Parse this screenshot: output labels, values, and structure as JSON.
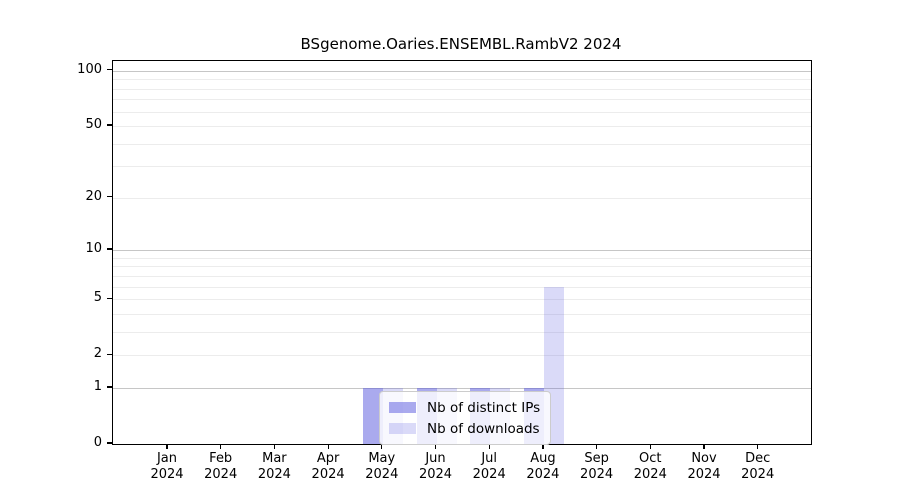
{
  "title": "BSgenome.Oaries.ENSEMBL.RambV2 2024",
  "colors": {
    "distinct_ips_bar": "rgba(85,85,221,0.5)",
    "downloads_bar": "rgba(85,85,221,0.22)",
    "distinct_ips_over_white": "#aaaaee",
    "downloads_over_white": "#d9d9f7",
    "grid_major": "#c6c6c6",
    "grid_minor": "#ececec",
    "axis": "#000000"
  },
  "legend": {
    "items": [
      {
        "label": "Nb of distinct IPs",
        "color_key": "distinct_ips_bar"
      },
      {
        "label": "Nb of downloads",
        "color_key": "downloads_bar"
      }
    ]
  },
  "chart_data": {
    "type": "bar",
    "title": "BSgenome.Oaries.ENSEMBL.RambV2 2024",
    "categories": [
      "Jan 2024",
      "Feb 2024",
      "Mar 2024",
      "Apr 2024",
      "May 2024",
      "Jun 2024",
      "Jul 2024",
      "Aug 2024",
      "Sep 2024",
      "Oct 2024",
      "Nov 2024",
      "Dec 2024"
    ],
    "series": [
      {
        "name": "Nb of distinct IPs",
        "values": [
          0,
          0,
          0,
          0,
          1,
          1,
          1,
          1,
          0,
          0,
          0,
          0
        ]
      },
      {
        "name": "Nb of downloads",
        "values": [
          0,
          0,
          0,
          0,
          1,
          1,
          1,
          6,
          0,
          0,
          0,
          0
        ]
      }
    ],
    "xlabel": "",
    "ylabel": "",
    "yscale": "log1p",
    "ylim": [
      0,
      113
    ],
    "y_ticks": [
      0,
      1,
      2,
      5,
      10,
      20,
      50,
      100
    ],
    "gridlines_major": [
      1,
      10,
      100
    ],
    "gridlines_minor": [
      2,
      3,
      4,
      5,
      6,
      7,
      8,
      9,
      20,
      30,
      40,
      50,
      60,
      70,
      80,
      90
    ],
    "grid": "horizontal",
    "legend_position": "lower-center-inside"
  }
}
